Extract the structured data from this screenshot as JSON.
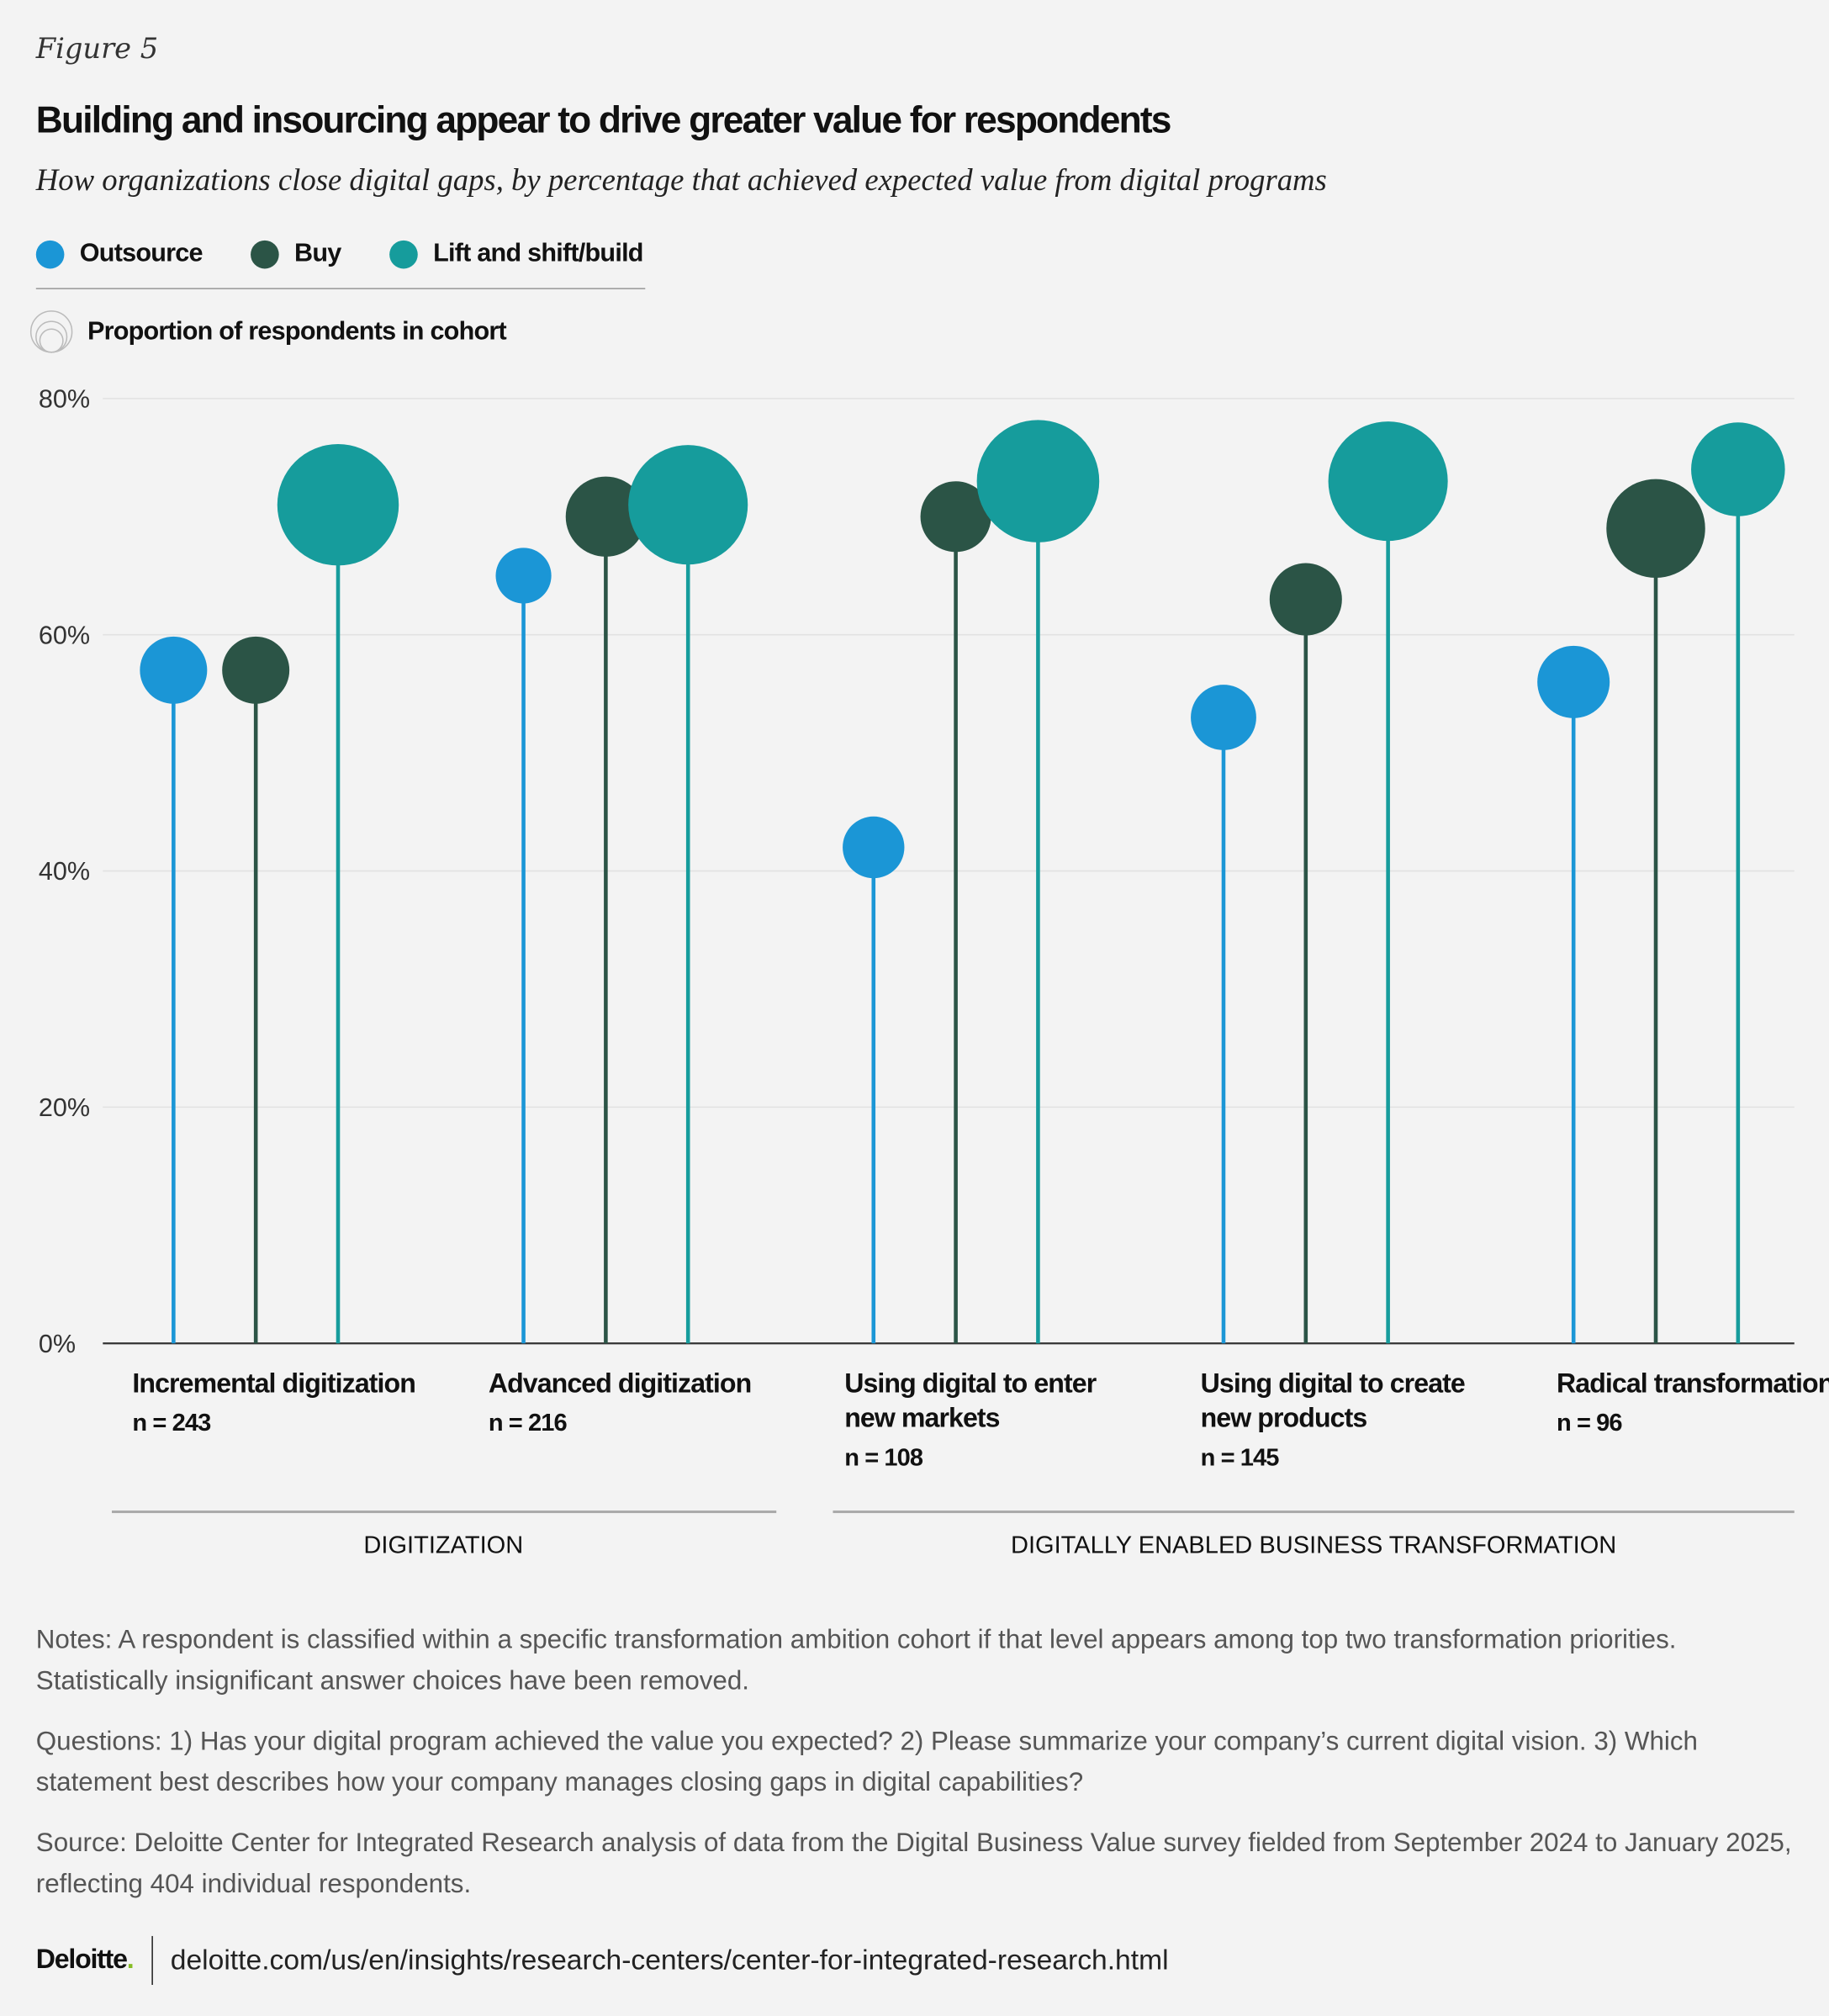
{
  "figure_label": "Figure 5",
  "title": "Building and insourcing appear to drive greater value for respondents",
  "subtitle": "How organizations close digital gaps, by percentage that achieved expected value from digital programs",
  "legend": {
    "series": [
      {
        "name": "Outsource",
        "color": "#1b96d6"
      },
      {
        "name": "Buy",
        "color": "#2b5446"
      },
      {
        "name": "Lift and shift/build",
        "color": "#169c9c"
      }
    ],
    "size_label": "Proportion of respondents in cohort",
    "size_icon": "nested-circles-icon"
  },
  "chart_data": {
    "type": "bubble-lollipop",
    "ylim": [
      0,
      80
    ],
    "yticks": [
      "0%",
      "20%",
      "40%",
      "60%",
      "80%"
    ],
    "grid": true,
    "legend_position": "top-left",
    "categories": [
      {
        "label": "Incremental digitization",
        "n": "n = 243",
        "group": "DIGITIZATION"
      },
      {
        "label": "Advanced digitization",
        "n": "n = 216",
        "group": "DIGITIZATION"
      },
      {
        "label": "Using digital to enter new markets",
        "n": "n = 108",
        "group": "DIGITALLY ENABLED BUSINESS TRANSFORMATION"
      },
      {
        "label": "Using digital to create new products",
        "n": "n = 145",
        "group": "DIGITALLY ENABLED BUSINESS TRANSFORMATION"
      },
      {
        "label": "Radical transformation",
        "n": "n = 96",
        "group": "DIGITALLY ENABLED BUSINESS TRANSFORMATION"
      }
    ],
    "series": [
      {
        "name": "Outsource",
        "color": "#1b96d6",
        "values": [
          57,
          65,
          42,
          53,
          56
        ],
        "proportion_estimate": [
          19,
          13,
          16,
          18,
          22
        ]
      },
      {
        "name": "Buy",
        "color": "#2b5446",
        "values": [
          57,
          70,
          70,
          63,
          69
        ],
        "proportion_estimate": [
          19,
          27,
          21,
          22,
          41
        ]
      },
      {
        "name": "Lift and shift/build",
        "color": "#169c9c",
        "values": [
          71,
          71,
          73,
          73,
          74
        ],
        "proportion_estimate": [
          62,
          60,
          63,
          60,
          37
        ]
      }
    ],
    "groups": [
      "DIGITIZATION",
      "DIGITALLY ENABLED BUSINESS TRANSFORMATION"
    ]
  },
  "notes": [
    "Notes: A respondent is classified within a specific transformation ambition cohort if that level appears among top two transformation priorities. Statistically insignificant answer choices have been removed.",
    "Questions: 1) Has your digital program achieved the value you expected? 2) Please summarize your company’s current digital vision. 3) Which statement best describes how your company manages closing gaps in digital capabilities?",
    "Source: Deloitte Center for Integrated Research analysis of data from the Digital Business Value survey fielded from September 2024 to January 2025, reflecting 404 individual respondents."
  ],
  "footer": {
    "logo": "Deloitte.",
    "url": "deloitte.com/us/en/insights/research-centers/center-for-integrated-research.html"
  }
}
